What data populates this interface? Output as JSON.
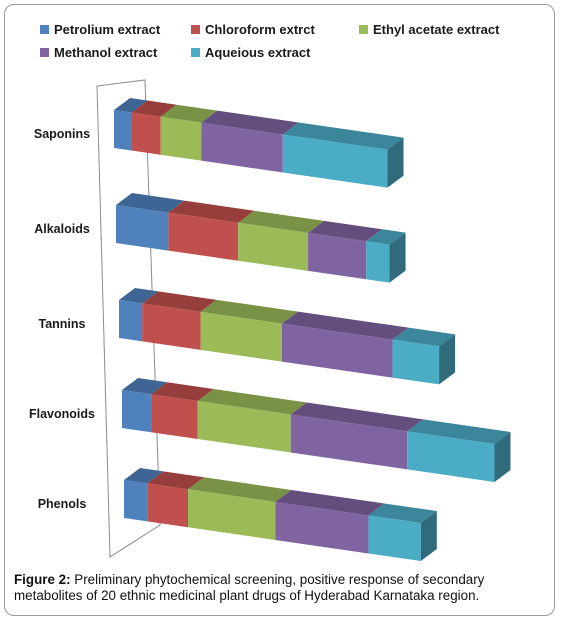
{
  "chart_data": {
    "type": "bar",
    "orientation": "horizontal",
    "stacked": true,
    "three_d": true,
    "categories": [
      "Saponins",
      "Alkaloids",
      "Tannins",
      "Flavonoids",
      "Phenols"
    ],
    "series": [
      {
        "name": "Petrolium extract",
        "color": "#4f81bd",
        "values": [
          3,
          9,
          4,
          5,
          4
        ]
      },
      {
        "name": "Chloroform extrct",
        "color": "#c0504d",
        "values": [
          5,
          12,
          10,
          8,
          7
        ]
      },
      {
        "name": "Ethyl acetate extract",
        "color": "#9bbb59",
        "values": [
          7,
          12,
          14,
          16,
          15
        ]
      },
      {
        "name": "Methanol extract",
        "color": "#8064a2",
        "values": [
          14,
          10,
          19,
          20,
          16
        ]
      },
      {
        "name": "Aqueious extract",
        "color": "#4bacc6",
        "values": [
          18,
          4,
          8,
          15,
          9
        ]
      }
    ],
    "legend_position": "top",
    "grid": false
  },
  "caption": {
    "label": "Figure 2:",
    "text": " Preliminary phytochemical screening, positive response of secondary metabolites of 20 ethnic medicinal plant drugs of Hyderabad Karnataka region."
  }
}
